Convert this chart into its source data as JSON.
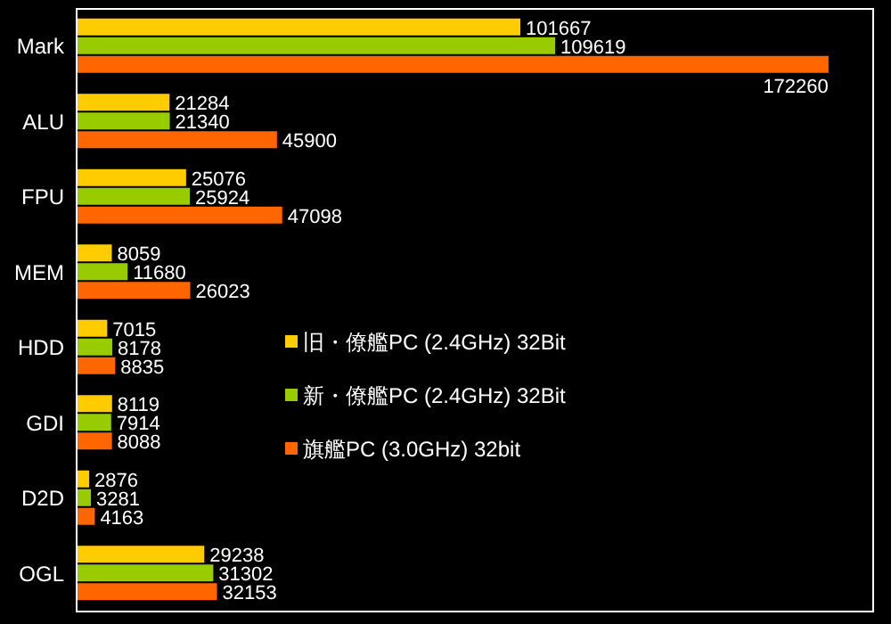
{
  "chart_data": {
    "type": "bar",
    "orientation": "horizontal",
    "categories": [
      "Mark",
      "ALU",
      "FPU",
      "MEM",
      "HDD",
      "GDI",
      "D2D",
      "OGL"
    ],
    "series": [
      {
        "name": "旧・僚艦PC (2.4GHz) 32Bit",
        "color": "#ffcc00",
        "values": [
          101667,
          21284,
          25076,
          8059,
          7015,
          8119,
          2876,
          29238
        ]
      },
      {
        "name": "新・僚艦PC (2.4GHz) 32Bit",
        "color": "#99cc00",
        "values": [
          109619,
          21340,
          25924,
          11680,
          8178,
          7914,
          3281,
          31302
        ]
      },
      {
        "name": "旗艦PC (3.0GHz) 32bit",
        "color": "#ff6600",
        "values": [
          172260,
          45900,
          47098,
          26023,
          8835,
          8088,
          4163,
          32153
        ]
      }
    ],
    "xlim": [
      0,
      182500
    ],
    "tick_labels": "y",
    "data_labels": true,
    "legend": "bottom left"
  }
}
